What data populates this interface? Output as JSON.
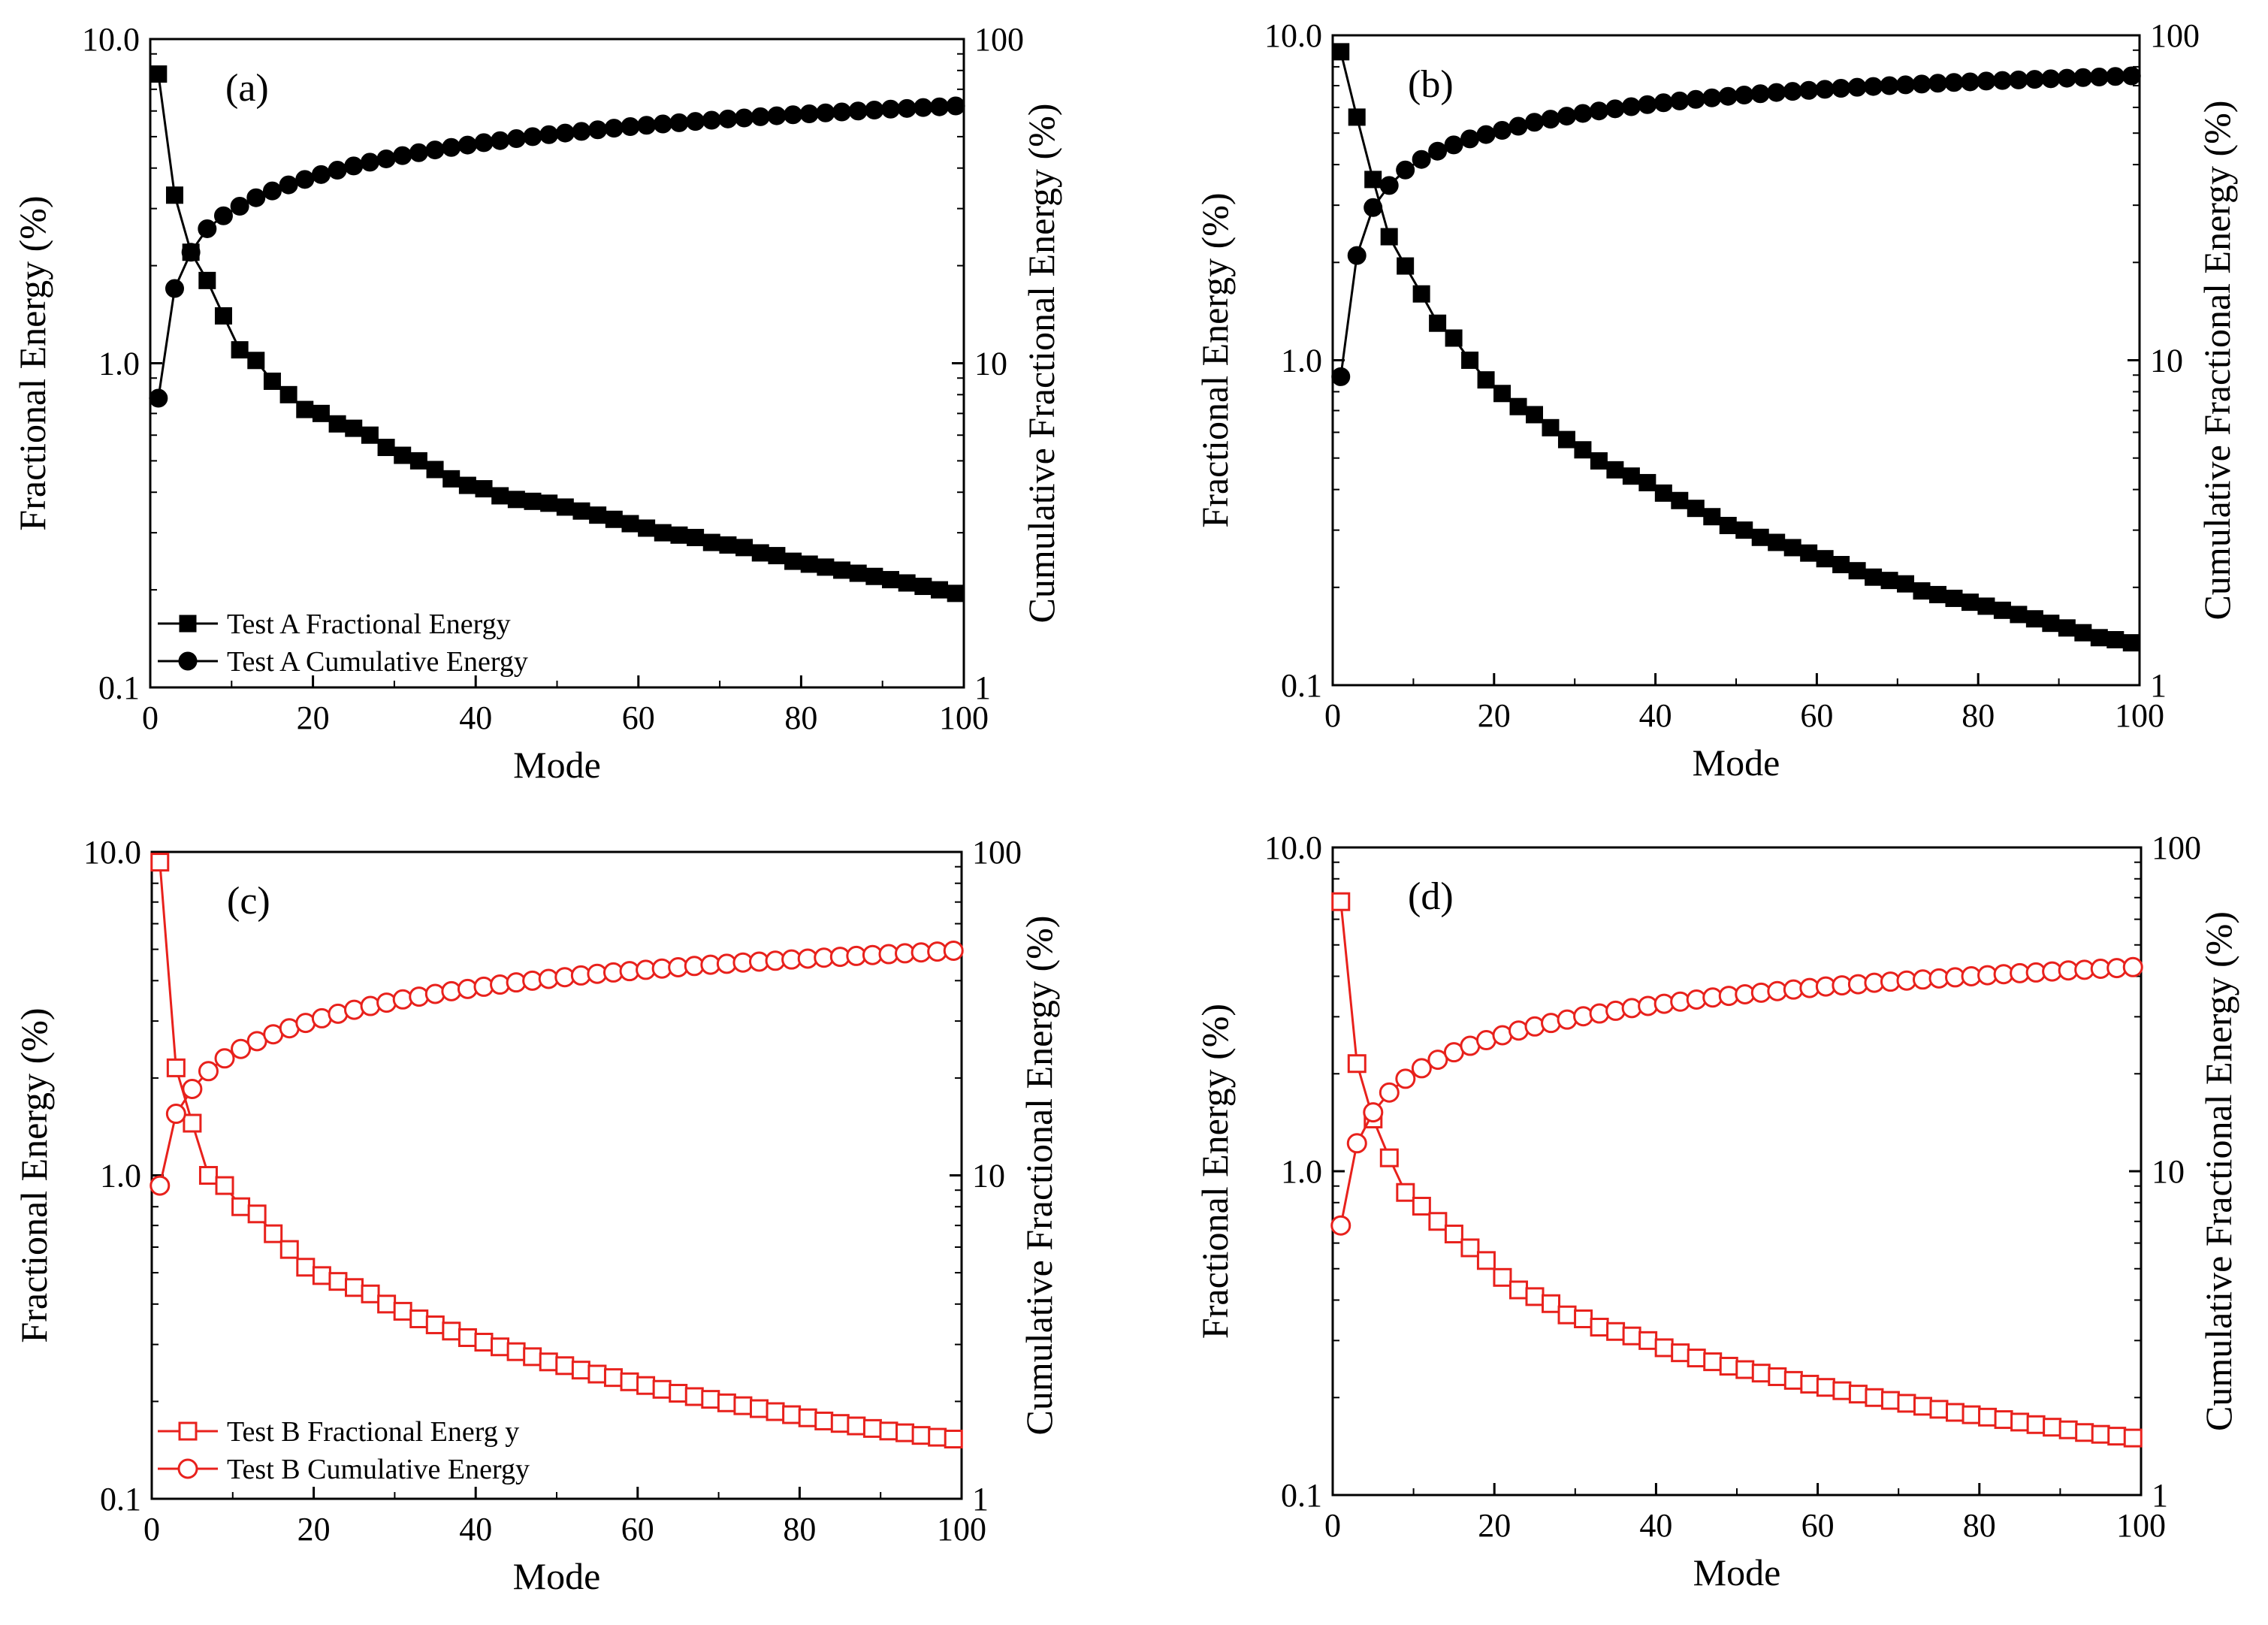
{
  "figure": {
    "xlabel": "Mode",
    "ylabel_left": "Fractional Energy (%)",
    "ylabel_right": "Cumulative Fractional Energy (%)",
    "left_ticks": [
      "0.1",
      "1.0",
      "10.0"
    ],
    "right_ticks": [
      "1",
      "10",
      "100"
    ],
    "x_ticks": [
      "0",
      "20",
      "40",
      "60",
      "80",
      "100"
    ],
    "colors": {
      "black": "#000000",
      "red": "#e8211c"
    }
  },
  "chart_data": [
    {
      "type": "line",
      "panel": "(a)",
      "x_range": [
        0,
        100
      ],
      "y_left_range": [
        0.1,
        10
      ],
      "y_left_scale": "log",
      "y_right_range": [
        1,
        100
      ],
      "y_right_scale": "log",
      "color": "black",
      "marker_fill": "filled",
      "legend": [
        "Test A Fractional Energy",
        "Test A Cumulative Energy"
      ],
      "series": [
        {
          "name": "Test A Fractional Energy",
          "axis": "left",
          "marker": "square",
          "x": [
            1,
            3,
            5,
            7,
            9,
            11,
            13,
            15,
            17,
            19,
            21,
            23,
            25,
            27,
            29,
            31,
            33,
            35,
            37,
            39,
            41,
            43,
            45,
            47,
            49,
            51,
            53,
            55,
            57,
            59,
            61,
            63,
            65,
            67,
            69,
            71,
            73,
            75,
            77,
            79,
            81,
            83,
            85,
            87,
            89,
            91,
            93,
            95,
            97,
            99
          ],
          "values": [
            7.8,
            3.3,
            2.2,
            1.8,
            1.4,
            1.1,
            1.02,
            0.88,
            0.8,
            0.72,
            0.7,
            0.65,
            0.63,
            0.6,
            0.55,
            0.52,
            0.5,
            0.47,
            0.44,
            0.42,
            0.41,
            0.39,
            0.38,
            0.375,
            0.37,
            0.36,
            0.35,
            0.34,
            0.33,
            0.32,
            0.31,
            0.3,
            0.295,
            0.29,
            0.28,
            0.275,
            0.27,
            0.26,
            0.255,
            0.245,
            0.24,
            0.235,
            0.23,
            0.225,
            0.22,
            0.215,
            0.21,
            0.205,
            0.2,
            0.195
          ]
        },
        {
          "name": "Test A Cumulative Energy",
          "axis": "right",
          "marker": "circle",
          "x": [
            1,
            3,
            5,
            7,
            9,
            11,
            13,
            15,
            17,
            19,
            21,
            23,
            25,
            27,
            29,
            31,
            33,
            35,
            37,
            39,
            41,
            43,
            45,
            47,
            49,
            51,
            53,
            55,
            57,
            59,
            61,
            63,
            65,
            67,
            69,
            71,
            73,
            75,
            77,
            79,
            81,
            83,
            85,
            87,
            89,
            91,
            93,
            95,
            97,
            99
          ],
          "values": [
            7.8,
            17,
            22,
            26,
            28.5,
            30.5,
            32.4,
            34,
            35.5,
            36.9,
            38.2,
            39.4,
            40.6,
            41.7,
            42.7,
            43.7,
            44.6,
            45.5,
            46.3,
            47.1,
            47.9,
            48.6,
            49.3,
            50,
            50.7,
            51.3,
            51.9,
            52.5,
            53.1,
            53.7,
            54.2,
            54.7,
            55.2,
            55.7,
            56.2,
            56.7,
            57.1,
            57.6,
            58,
            58.4,
            58.8,
            59.2,
            59.6,
            60,
            60.4,
            60.8,
            61.1,
            61.5,
            61.8,
            62.2
          ]
        }
      ]
    },
    {
      "type": "line",
      "panel": "(b)",
      "x_range": [
        0,
        100
      ],
      "y_left_range": [
        0.1,
        10
      ],
      "y_left_scale": "log",
      "y_right_range": [
        1,
        100
      ],
      "y_right_scale": "log",
      "color": "black",
      "marker_fill": "filled",
      "legend": [],
      "series": [
        {
          "name": "Fractional Energy",
          "axis": "left",
          "marker": "square",
          "x": [
            1,
            3,
            5,
            7,
            9,
            11,
            13,
            15,
            17,
            19,
            21,
            23,
            25,
            27,
            29,
            31,
            33,
            35,
            37,
            39,
            41,
            43,
            45,
            47,
            49,
            51,
            53,
            55,
            57,
            59,
            61,
            63,
            65,
            67,
            69,
            71,
            73,
            75,
            77,
            79,
            81,
            83,
            85,
            87,
            89,
            91,
            93,
            95,
            97,
            99
          ],
          "values": [
            8.9,
            5.6,
            3.6,
            2.4,
            1.95,
            1.6,
            1.3,
            1.17,
            1.0,
            0.87,
            0.79,
            0.72,
            0.68,
            0.62,
            0.57,
            0.53,
            0.49,
            0.46,
            0.44,
            0.42,
            0.39,
            0.37,
            0.35,
            0.33,
            0.31,
            0.3,
            0.285,
            0.275,
            0.265,
            0.255,
            0.245,
            0.235,
            0.225,
            0.215,
            0.21,
            0.205,
            0.195,
            0.19,
            0.185,
            0.18,
            0.175,
            0.17,
            0.165,
            0.16,
            0.155,
            0.15,
            0.145,
            0.14,
            0.138,
            0.135
          ]
        },
        {
          "name": "Cumulative Energy",
          "axis": "right",
          "marker": "circle",
          "x": [
            1,
            3,
            5,
            7,
            9,
            11,
            13,
            15,
            17,
            19,
            21,
            23,
            25,
            27,
            29,
            31,
            33,
            35,
            37,
            39,
            41,
            43,
            45,
            47,
            49,
            51,
            53,
            55,
            57,
            59,
            61,
            63,
            65,
            67,
            69,
            71,
            73,
            75,
            77,
            79,
            81,
            83,
            85,
            87,
            89,
            91,
            93,
            95,
            97,
            99
          ],
          "values": [
            8.9,
            21,
            29.5,
            34.5,
            38.5,
            41.5,
            44,
            46,
            48,
            49.5,
            51,
            52.5,
            54,
            55.2,
            56.4,
            57.5,
            58.5,
            59.4,
            60.3,
            61.2,
            62,
            62.8,
            63.5,
            64.2,
            64.9,
            65.5,
            66.1,
            66.7,
            67.2,
            67.7,
            68.2,
            68.7,
            69.2,
            69.6,
            70,
            70.4,
            70.8,
            71.2,
            71.6,
            71.9,
            72.3,
            72.6,
            72.9,
            73.2,
            73.5,
            73.8,
            74.1,
            74.4,
            74.7,
            75
          ]
        }
      ]
    },
    {
      "type": "line",
      "panel": "(c)",
      "x_range": [
        0,
        100
      ],
      "y_left_range": [
        0.1,
        10
      ],
      "y_left_scale": "log",
      "y_right_range": [
        1,
        100
      ],
      "y_right_scale": "log",
      "color": "red",
      "marker_fill": "hollow",
      "legend": [
        "Test B Fractional Energ y",
        "Test B Cumulative Energy"
      ],
      "series": [
        {
          "name": "Test B Fractional Energy",
          "axis": "left",
          "marker": "square",
          "x": [
            1,
            3,
            5,
            7,
            9,
            11,
            13,
            15,
            17,
            19,
            21,
            23,
            25,
            27,
            29,
            31,
            33,
            35,
            37,
            39,
            41,
            43,
            45,
            47,
            49,
            51,
            53,
            55,
            57,
            59,
            61,
            63,
            65,
            67,
            69,
            71,
            73,
            75,
            77,
            79,
            81,
            83,
            85,
            87,
            89,
            91,
            93,
            95,
            97,
            99
          ],
          "values": [
            9.3,
            2.15,
            1.45,
            1.0,
            0.93,
            0.8,
            0.76,
            0.66,
            0.59,
            0.52,
            0.49,
            0.47,
            0.45,
            0.43,
            0.4,
            0.38,
            0.36,
            0.345,
            0.33,
            0.315,
            0.305,
            0.295,
            0.285,
            0.275,
            0.265,
            0.258,
            0.25,
            0.243,
            0.237,
            0.23,
            0.224,
            0.218,
            0.212,
            0.207,
            0.203,
            0.198,
            0.194,
            0.19,
            0.186,
            0.182,
            0.178,
            0.174,
            0.171,
            0.168,
            0.165,
            0.162,
            0.16,
            0.157,
            0.155,
            0.153
          ]
        },
        {
          "name": "Test B Cumulative Energy",
          "axis": "right",
          "marker": "circle",
          "x": [
            1,
            3,
            5,
            7,
            9,
            11,
            13,
            15,
            17,
            19,
            21,
            23,
            25,
            27,
            29,
            31,
            33,
            35,
            37,
            39,
            41,
            43,
            45,
            47,
            49,
            51,
            53,
            55,
            57,
            59,
            61,
            63,
            65,
            67,
            69,
            71,
            73,
            75,
            77,
            79,
            81,
            83,
            85,
            87,
            89,
            91,
            93,
            95,
            97,
            99
          ],
          "values": [
            9.3,
            15.5,
            18.5,
            21,
            23,
            24.6,
            26,
            27.3,
            28.5,
            29.6,
            30.6,
            31.6,
            32.5,
            33.4,
            34.2,
            35,
            35.7,
            36.4,
            37.1,
            37.7,
            38.3,
            38.9,
            39.5,
            40,
            40.5,
            41,
            41.5,
            42,
            42.4,
            42.8,
            43.2,
            43.6,
            44,
            44.4,
            44.8,
            45.1,
            45.5,
            45.8,
            46.1,
            46.5,
            46.8,
            47.1,
            47.4,
            47.7,
            48,
            48.3,
            48.6,
            48.9,
            49.2,
            49.5
          ]
        }
      ]
    },
    {
      "type": "line",
      "panel": "(d)",
      "x_range": [
        0,
        100
      ],
      "y_left_range": [
        0.1,
        10
      ],
      "y_left_scale": "log",
      "y_right_range": [
        1,
        100
      ],
      "y_right_scale": "log",
      "color": "red",
      "marker_fill": "hollow",
      "legend": [],
      "series": [
        {
          "name": "Fractional Energy",
          "axis": "left",
          "marker": "square",
          "x": [
            1,
            3,
            5,
            7,
            9,
            11,
            13,
            15,
            17,
            19,
            21,
            23,
            25,
            27,
            29,
            31,
            33,
            35,
            37,
            39,
            41,
            43,
            45,
            47,
            49,
            51,
            53,
            55,
            57,
            59,
            61,
            63,
            65,
            67,
            69,
            71,
            73,
            75,
            77,
            79,
            81,
            83,
            85,
            87,
            89,
            91,
            93,
            95,
            97,
            99
          ],
          "values": [
            6.8,
            2.15,
            1.45,
            1.1,
            0.86,
            0.78,
            0.7,
            0.64,
            0.58,
            0.53,
            0.47,
            0.43,
            0.41,
            0.39,
            0.36,
            0.35,
            0.33,
            0.32,
            0.31,
            0.3,
            0.285,
            0.275,
            0.265,
            0.258,
            0.25,
            0.244,
            0.238,
            0.232,
            0.226,
            0.22,
            0.215,
            0.21,
            0.205,
            0.2,
            0.196,
            0.192,
            0.188,
            0.184,
            0.18,
            0.177,
            0.174,
            0.171,
            0.168,
            0.165,
            0.162,
            0.159,
            0.156,
            0.154,
            0.152,
            0.15
          ]
        },
        {
          "name": "Cumulative Energy",
          "axis": "right",
          "marker": "circle",
          "x": [
            1,
            3,
            5,
            7,
            9,
            11,
            13,
            15,
            17,
            19,
            21,
            23,
            25,
            27,
            29,
            31,
            33,
            35,
            37,
            39,
            41,
            43,
            45,
            47,
            49,
            51,
            53,
            55,
            57,
            59,
            61,
            63,
            65,
            67,
            69,
            71,
            73,
            75,
            77,
            79,
            81,
            83,
            85,
            87,
            89,
            91,
            93,
            95,
            97,
            99
          ],
          "values": [
            6.8,
            12.2,
            15.2,
            17.5,
            19.3,
            20.8,
            22.1,
            23.3,
            24.4,
            25.4,
            26.3,
            27.2,
            28,
            28.7,
            29.4,
            30.1,
            30.7,
            31.3,
            31.9,
            32.4,
            32.9,
            33.4,
            33.9,
            34.4,
            34.8,
            35.2,
            35.6,
            36,
            36.4,
            36.8,
            37.2,
            37.5,
            37.8,
            38.2,
            38.5,
            38.8,
            39.1,
            39.4,
            39.7,
            40,
            40.3,
            40.6,
            40.9,
            41.1,
            41.4,
            41.7,
            41.9,
            42.2,
            42.4,
            42.7
          ]
        }
      ]
    }
  ]
}
